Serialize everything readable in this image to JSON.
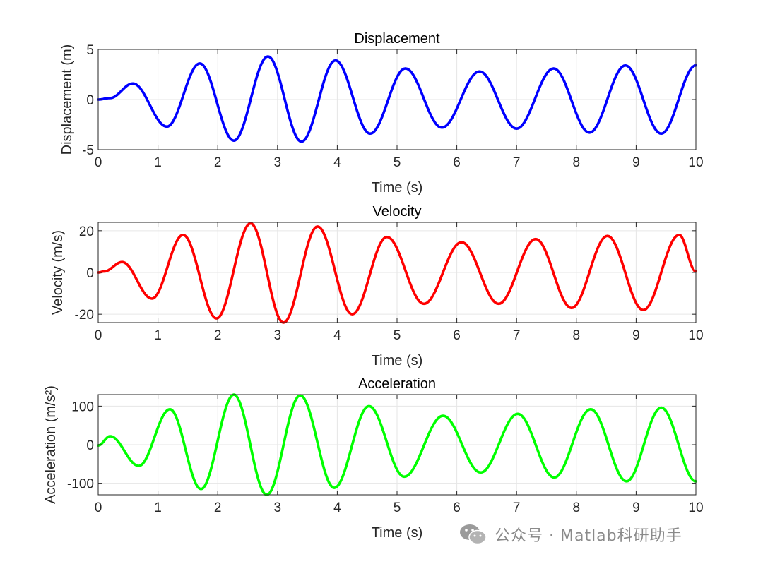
{
  "chart_data": [
    {
      "type": "line",
      "title": "Displacement",
      "xlabel": "Time (s)",
      "ylabel": "Displacement (m)",
      "xlim": [
        0,
        10
      ],
      "ylim": [
        -5,
        5
      ],
      "xticks": [
        "0",
        "1",
        "2",
        "3",
        "4",
        "5",
        "6",
        "7",
        "8",
        "9",
        "10"
      ],
      "yticks": [
        "5",
        "0",
        "-5"
      ],
      "ytick_values": [
        5,
        0,
        -5
      ],
      "grid": true,
      "color": "#0000ff",
      "series": [
        {
          "x": [
            0,
            0.2,
            0.58,
            1.15,
            1.7,
            2.27,
            2.84,
            3.4,
            3.97,
            4.55,
            5.14,
            5.75,
            6.38,
            7.0,
            7.62,
            8.22,
            8.82,
            9.42,
            10.0
          ],
          "values": [
            0,
            0.15,
            1.6,
            -2.7,
            3.6,
            -4.1,
            4.3,
            -4.2,
            3.9,
            -3.4,
            3.1,
            -2.8,
            2.8,
            -2.9,
            3.1,
            -3.3,
            3.4,
            -3.4,
            3.4
          ]
        }
      ]
    },
    {
      "type": "line",
      "title": "Velocity",
      "xlabel": "Time (s)",
      "ylabel": "Velocity (m/s)",
      "xlim": [
        0,
        10
      ],
      "ylim": [
        -24,
        24
      ],
      "xticks": [
        "0",
        "1",
        "2",
        "3",
        "4",
        "5",
        "6",
        "7",
        "8",
        "9",
        "10"
      ],
      "yticks": [
        "20",
        "0",
        "-20"
      ],
      "ytick_values": [
        20,
        0,
        -20
      ],
      "grid": true,
      "color": "#ff0000",
      "series": [
        {
          "x": [
            0,
            0.1,
            0.4,
            0.9,
            1.42,
            1.98,
            2.55,
            3.1,
            3.67,
            4.25,
            4.83,
            5.45,
            6.08,
            6.7,
            7.32,
            7.92,
            8.52,
            9.12,
            9.72,
            10.0
          ],
          "values": [
            0,
            0.5,
            5,
            -12.5,
            18,
            -22,
            23.5,
            -24,
            22,
            -20,
            17,
            -15,
            14.5,
            -15,
            16,
            -17,
            17.5,
            -18,
            18,
            0.5
          ]
        }
      ]
    },
    {
      "type": "line",
      "title": "Acceleration",
      "xlabel": "Time (s)",
      "ylabel": "Acceleration (m/s²)",
      "xlim": [
        0,
        10
      ],
      "ylim": [
        -130,
        130
      ],
      "xticks": [
        "0",
        "1",
        "2",
        "3",
        "4",
        "5",
        "6",
        "7",
        "8",
        "9",
        "10"
      ],
      "yticks": [
        "100",
        "0",
        "-100"
      ],
      "ytick_values": [
        100,
        0,
        -100
      ],
      "grid": true,
      "color": "#00ff00",
      "series": [
        {
          "x": [
            0,
            0.2,
            0.68,
            1.2,
            1.72,
            2.27,
            2.82,
            3.38,
            3.95,
            4.53,
            5.12,
            5.77,
            6.4,
            7.02,
            7.63,
            8.24,
            8.84,
            9.42,
            10.0
          ],
          "values": [
            -2,
            22,
            -55,
            92,
            -115,
            130,
            -130,
            128,
            -112,
            100,
            -83,
            75,
            -72,
            80,
            -85,
            92,
            -95,
            96,
            -95
          ]
        }
      ]
    }
  ],
  "watermark": {
    "text": "公众号 · Matlab科研助手"
  }
}
